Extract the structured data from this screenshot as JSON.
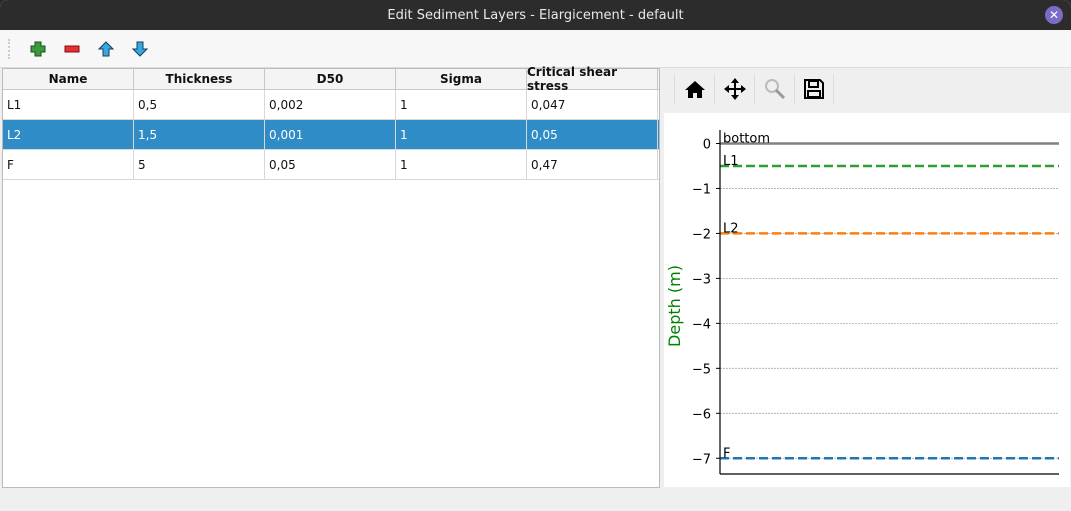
{
  "window": {
    "title": "Edit Sediment Layers - Elargicement - default"
  },
  "toolbar": {
    "icons": [
      "add-icon",
      "remove-icon",
      "move-up-icon",
      "move-down-icon"
    ]
  },
  "table": {
    "columns": [
      "Name",
      "Thickness",
      "D50",
      "Sigma",
      "Critical shear stress"
    ],
    "rows": [
      [
        "L1",
        "0,5",
        "0,002",
        "1",
        "0,047"
      ],
      [
        "L2",
        "1,5",
        "0,001",
        "1",
        "0,05"
      ],
      [
        "F",
        "5",
        "0,05",
        "1",
        "0,47"
      ]
    ],
    "selected_row": 1,
    "selection_color": "#308cc6"
  },
  "plot_toolbar": {
    "icons": [
      "home-icon",
      "pan-icon",
      "zoom-icon",
      "save-icon"
    ]
  },
  "chart_data": {
    "type": "line",
    "ylabel": "Depth (m)",
    "ylabel_color": "#008000",
    "ylim": [
      -7.35,
      0.3
    ],
    "yticks": [
      0,
      -1,
      -2,
      -3,
      -4,
      -5,
      -6,
      -7
    ],
    "ytick_labels": [
      "0",
      "−1",
      "−2",
      "−3",
      "−4",
      "−5",
      "−6",
      "−7"
    ],
    "grid": true,
    "lines": [
      {
        "label": "bottom",
        "y": 0,
        "color": "#808080",
        "style": "solid"
      },
      {
        "label": "L1",
        "y": -0.5,
        "color": "#2ca02c",
        "style": "dashed"
      },
      {
        "label": "L2",
        "y": -2,
        "color": "#ff7f0e",
        "style": "dashed"
      },
      {
        "label": "F",
        "y": -7,
        "color": "#1f77b4",
        "style": "dashed"
      }
    ]
  }
}
